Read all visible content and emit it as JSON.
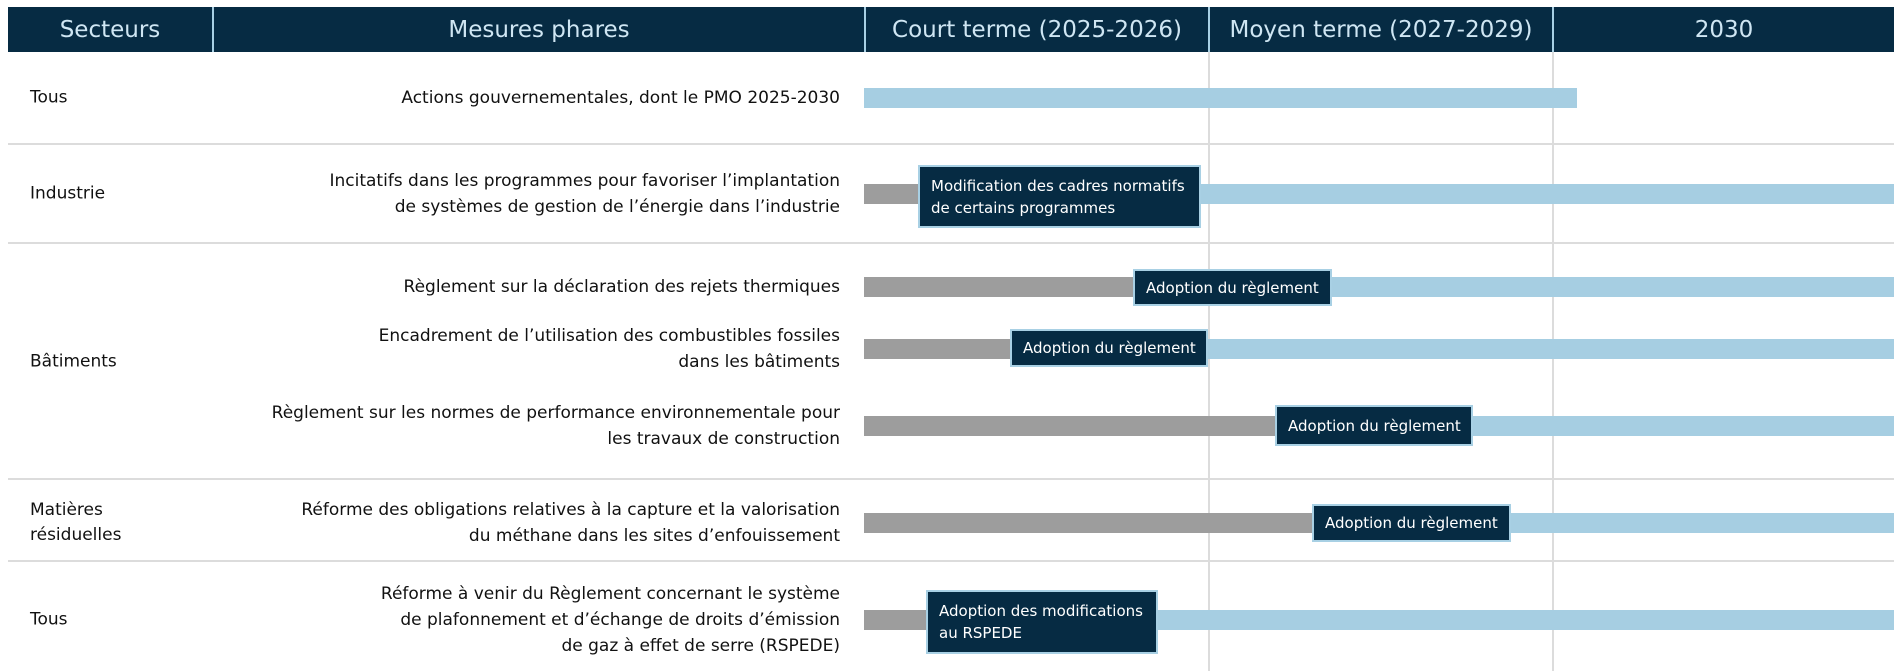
{
  "header": {
    "columns": [
      "Secteurs",
      "Mesures phares",
      "Court terme (2025-2026)",
      "Moyen terme (2027-2029)",
      "2030"
    ]
  },
  "rows": [
    {
      "sector": [
        "Tous"
      ],
      "measures": [
        {
          "text": [
            "Actions gouvernementales, dont le PMO 2025-2030"
          ],
          "milestone": null
        }
      ]
    },
    {
      "sector": [
        "Industrie"
      ],
      "measures": [
        {
          "text": [
            "Incitatifs dans les programmes pour favoriser l’implantation",
            "de systèmes de gestion de l’énergie dans l’industrie"
          ],
          "milestone": [
            "Modification des cadres normatifs",
            "de certains programmes"
          ]
        }
      ]
    },
    {
      "sector": [
        "Bâtiments"
      ],
      "measures": [
        {
          "text": [
            "Règlement sur la déclaration des rejets thermiques"
          ],
          "milestone": [
            "Adoption du règlement"
          ]
        },
        {
          "text": [
            "Encadrement de l’utilisation des combustibles fossiles",
            "dans les bâtiments"
          ],
          "milestone": [
            "Adoption du règlement"
          ]
        },
        {
          "text": [
            "Règlement sur les normes de performance environnementale pour",
            "les travaux de construction"
          ],
          "milestone": [
            "Adoption du règlement"
          ]
        }
      ]
    },
    {
      "sector": [
        "Matières",
        "résiduelles"
      ],
      "measures": [
        {
          "text": [
            "Réforme des obligations relatives à la capture et la valorisation",
            "du méthane dans les sites d’enfouissement"
          ],
          "milestone": [
            "Adoption du règlement"
          ]
        }
      ]
    },
    {
      "sector": [
        "Tous"
      ],
      "measures": [
        {
          "text": [
            "Réforme à venir du Règlement concernant le système",
            "de plafonnement et d’échange de droits d’émission",
            "de gaz à effet de serre (RSPEDE)"
          ],
          "milestone": [
            "Adoption des modifications",
            "au RSPEDE"
          ]
        }
      ]
    }
  ]
}
